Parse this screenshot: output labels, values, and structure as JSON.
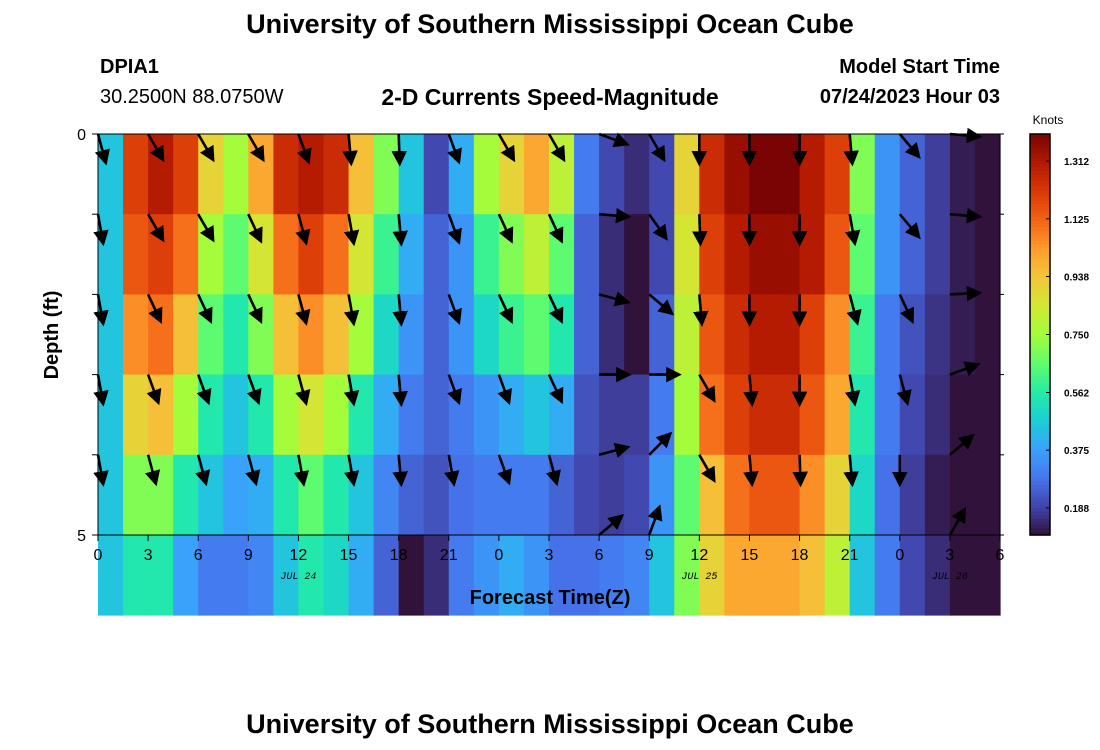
{
  "header": {
    "title": "University of Southern Mississippi Ocean Cube",
    "station": "DPIA1",
    "coords": "30.2500N  88.0750W",
    "subtitle": "2-D Currents Speed-Magnitude",
    "model_label": "Model Start Time",
    "model_time": "07/24/2023 Hour 03"
  },
  "footer": {
    "title": "University of Southern Mississippi Ocean Cube"
  },
  "colors": [
    "#30123b",
    "#4145ab",
    "#4675ed",
    "#39a2fc",
    "#1bcfd4",
    "#24eca6",
    "#61fc6c",
    "#a4fc3b",
    "#d1e834",
    "#f3c63a",
    "#fe9b2d",
    "#f36315",
    "#d93807",
    "#b11901",
    "#7a0403"
  ],
  "chart_data": {
    "type": "heatmap",
    "xlabel": "Forecast Time(Z)",
    "ylabel": "Depth (ft)",
    "x_tick_labels": [
      "0",
      "3",
      "6",
      "9",
      "12",
      "15",
      "18",
      "21",
      "0",
      "3",
      "6",
      "9",
      "12",
      "15",
      "18",
      "21",
      "0",
      "3",
      "6"
    ],
    "x_range_hours": [
      0,
      54
    ],
    "date_labels": [
      {
        "label": "JUL 24",
        "hour": 12
      },
      {
        "label": "JUL 25",
        "hour": 36
      },
      {
        "label": "JUL 26",
        "hour": 51
      }
    ],
    "y_tick_labels": [
      "0",
      "5"
    ],
    "ylim": [
      0,
      5
    ],
    "colorbar": {
      "label": "Knots",
      "range": [
        0.1,
        1.4
      ],
      "ticks": [
        "0.188",
        "0.375",
        "0.562",
        "0.750",
        "0.938",
        "1.125",
        "1.312"
      ]
    },
    "depth_rows": [
      0,
      1,
      2,
      3,
      4,
      5
    ],
    "speed_knots": [
      [
        0.45,
        1.2,
        1.3,
        1.2,
        0.9,
        0.75,
        1.0,
        1.25,
        1.3,
        1.25,
        0.95,
        0.7,
        0.45,
        0.2,
        0.4,
        0.75,
        0.9,
        1.0,
        0.8,
        0.3,
        0.2,
        0.15,
        0.2,
        0.9,
        1.25,
        1.35,
        1.4,
        1.4,
        1.3,
        1.2,
        0.7,
        0.35,
        0.25,
        0.18,
        0.12,
        0.1
      ],
      [
        0.45,
        1.15,
        1.2,
        1.1,
        0.75,
        0.65,
        0.85,
        1.1,
        1.2,
        1.1,
        0.85,
        0.6,
        0.4,
        0.25,
        0.35,
        0.6,
        0.7,
        0.8,
        0.65,
        0.25,
        0.15,
        0.1,
        0.2,
        0.85,
        1.2,
        1.3,
        1.35,
        1.35,
        1.3,
        1.15,
        0.65,
        0.35,
        0.25,
        0.18,
        0.12,
        0.1
      ],
      [
        0.45,
        1.05,
        1.1,
        0.95,
        0.65,
        0.55,
        0.7,
        0.95,
        1.05,
        0.95,
        0.75,
        0.5,
        0.35,
        0.25,
        0.35,
        0.5,
        0.6,
        0.65,
        0.55,
        0.25,
        0.15,
        0.1,
        0.25,
        0.8,
        1.15,
        1.25,
        1.3,
        1.3,
        1.2,
        1.05,
        0.6,
        0.3,
        0.22,
        0.16,
        0.12,
        0.1
      ],
      [
        0.45,
        0.9,
        0.95,
        0.75,
        0.55,
        0.45,
        0.55,
        0.75,
        0.85,
        0.75,
        0.55,
        0.4,
        0.3,
        0.25,
        0.3,
        0.35,
        0.4,
        0.45,
        0.4,
        0.22,
        0.18,
        0.18,
        0.3,
        0.75,
        1.1,
        1.2,
        1.25,
        1.25,
        1.15,
        1.0,
        0.55,
        0.3,
        0.2,
        0.15,
        0.1,
        0.08
      ],
      [
        0.45,
        0.7,
        0.7,
        0.55,
        0.45,
        0.38,
        0.4,
        0.55,
        0.65,
        0.55,
        0.45,
        0.32,
        0.25,
        0.22,
        0.28,
        0.3,
        0.3,
        0.3,
        0.25,
        0.2,
        0.18,
        0.2,
        0.35,
        0.65,
        0.95,
        1.1,
        1.15,
        1.15,
        1.05,
        0.9,
        0.5,
        0.28,
        0.18,
        0.12,
        0.08,
        0.06
      ],
      [
        0.45,
        0.55,
        0.55,
        0.38,
        0.3,
        0.3,
        0.32,
        0.45,
        0.55,
        0.5,
        0.4,
        0.25,
        0.1,
        0.15,
        0.3,
        0.35,
        0.4,
        0.35,
        0.28,
        0.28,
        0.3,
        0.32,
        0.45,
        0.7,
        0.9,
        1.0,
        1.0,
        1.0,
        0.95,
        0.8,
        0.45,
        0.3,
        0.2,
        0.15,
        0.1,
        0.08
      ]
    ],
    "vector_times_hours": [
      0,
      3,
      6,
      9,
      12,
      15,
      18,
      21,
      24,
      27,
      30,
      33,
      36,
      39,
      42,
      45,
      48,
      51
    ],
    "vector_directions_deg": [
      [
        165,
        150,
        150,
        150,
        160,
        175,
        178,
        160,
        150,
        150,
        110,
        150,
        180,
        180,
        180,
        175,
        140,
        95
      ],
      [
        170,
        150,
        150,
        155,
        165,
        170,
        175,
        160,
        155,
        155,
        95,
        145,
        178,
        180,
        180,
        170,
        140,
        95
      ],
      [
        170,
        155,
        155,
        155,
        165,
        170,
        175,
        160,
        155,
        155,
        105,
        130,
        175,
        180,
        180,
        165,
        155,
        87
      ],
      [
        170,
        160,
        160,
        160,
        165,
        170,
        175,
        160,
        160,
        155,
        90,
        90,
        150,
        175,
        180,
        170,
        165,
        70
      ],
      [
        170,
        165,
        165,
        165,
        170,
        170,
        175,
        170,
        160,
        165,
        75,
        45,
        150,
        175,
        178,
        175,
        180,
        50
      ],
      [
        null,
        null,
        null,
        null,
        null,
        null,
        null,
        null,
        null,
        null,
        50,
        20,
        null,
        null,
        null,
        null,
        null,
        30
      ]
    ]
  }
}
